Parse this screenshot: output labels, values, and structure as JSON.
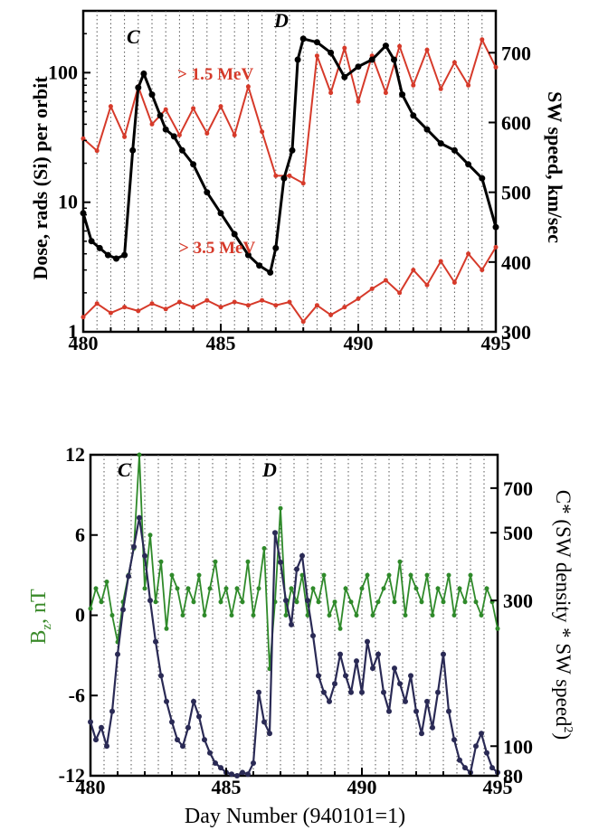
{
  "chart_data": [
    {
      "type": "line",
      "xlim": [
        480,
        495
      ],
      "x_ticks": [
        "480",
        "485",
        "490",
        "495"
      ],
      "left_axis": {
        "label": "Dose, rads (Si) per orbit",
        "scale": "log",
        "ylim": [
          1,
          300
        ],
        "ticks": [
          "1",
          "10",
          "100"
        ]
      },
      "right_axis": {
        "label": "SW speed, km/sec",
        "scale": "linear",
        "ylim": [
          300,
          760
        ],
        "ticks": [
          "300",
          "400",
          "500",
          "600",
          "700"
        ]
      },
      "grid": "vertical dotted",
      "annotations": [
        {
          "text": "C",
          "x": 482.2
        },
        {
          "text": "D",
          "x": 487.2
        },
        {
          "text": "> 1.5  MeV",
          "x": 483.5,
          "y": 140,
          "color": "#d63a2a"
        },
        {
          "text": "> 3.5  MeV",
          "x": 483.4,
          "y": 2.5,
          "color": "#d63a2a"
        }
      ],
      "series": [
        {
          "color": "#d63a2a",
          "axis": "left",
          "x": [
            480,
            480.5,
            481,
            481.5,
            482,
            482.5,
            483,
            483.5,
            484,
            484.5,
            485,
            485.5,
            486,
            486.5,
            487,
            487.5,
            488,
            488.5,
            489,
            489.5,
            490,
            490.5,
            491,
            491.5,
            492,
            492.5,
            493,
            493.5,
            494,
            494.5,
            495
          ],
          "values": [
            31,
            25,
            55,
            32,
            78,
            40,
            52,
            33,
            53,
            34,
            55,
            33,
            78,
            35,
            16,
            16,
            14,
            135,
            70,
            155,
            60,
            135,
            70,
            160,
            80,
            150,
            75,
            120,
            80,
            180,
            110
          ]
        },
        {
          "color": "#d63a2a",
          "axis": "left",
          "x": [
            480,
            480.5,
            481,
            481.5,
            482,
            482.5,
            483,
            483.5,
            484,
            484.5,
            485,
            485.5,
            486,
            486.5,
            487,
            487.5,
            488,
            488.5,
            489,
            489.5,
            490,
            490.5,
            491,
            491.5,
            492,
            492.5,
            493,
            493.5,
            494,
            494.5,
            495
          ],
          "values": [
            1.3,
            1.65,
            1.4,
            1.55,
            1.45,
            1.65,
            1.5,
            1.7,
            1.55,
            1.75,
            1.55,
            1.7,
            1.6,
            1.75,
            1.6,
            1.7,
            1.2,
            1.6,
            1.35,
            1.55,
            1.8,
            2.15,
            2.5,
            2.0,
            3.0,
            2.3,
            3.5,
            2.4,
            4.0,
            3.0,
            4.5
          ]
        },
        {
          "color": "#000000",
          "axis": "right",
          "x": [
            480,
            480.3,
            480.6,
            480.9,
            481.2,
            481.5,
            481.8,
            482.0,
            482.2,
            482.5,
            482.8,
            483.0,
            483.3,
            483.6,
            484.0,
            484.5,
            485.0,
            485.5,
            486.0,
            486.4,
            486.8,
            487.0,
            487.3,
            487.6,
            487.8,
            488.0,
            488.5,
            489.0,
            489.5,
            490.0,
            490.5,
            491.0,
            491.3,
            491.6,
            492.0,
            492.5,
            493.0,
            493.5,
            494.0,
            494.5,
            495.0
          ],
          "values": [
            470,
            430,
            420,
            410,
            405,
            410,
            560,
            650,
            670,
            640,
            610,
            590,
            580,
            560,
            540,
            500,
            470,
            440,
            410,
            395,
            385,
            420,
            520,
            560,
            690,
            720,
            715,
            700,
            665,
            680,
            690,
            710,
            690,
            640,
            610,
            590,
            570,
            560,
            540,
            520,
            450
          ]
        }
      ]
    },
    {
      "type": "line",
      "xlim": [
        480,
        495
      ],
      "x_ticks": [
        "480",
        "485",
        "490",
        "495"
      ],
      "xlabel": "Day Number (940101=1)",
      "left_axis": {
        "label": "B",
        "label_sub": "z",
        "label_rest": ", nT",
        "scale": "linear",
        "ylim": [
          -12,
          12
        ],
        "ticks": [
          "12",
          "6",
          "0",
          "-6",
          "-12"
        ]
      },
      "right_axis": {
        "label": "C* (SW density * SW speed",
        "label_sup": "2",
        "label_end": ")",
        "scale": "log",
        "ylim": [
          80,
          900
        ],
        "ticks": [
          "700",
          "500",
          "300",
          "100",
          "80"
        ]
      },
      "grid": "vertical dotted",
      "annotations": [
        {
          "text": "C",
          "x": 481.1
        },
        {
          "text": "D",
          "x": 486.2
        }
      ],
      "series": [
        {
          "color": "#2f8a2a",
          "axis": "left",
          "x": [
            480.0,
            480.2,
            480.4,
            480.6,
            480.8,
            481.0,
            481.2,
            481.4,
            481.6,
            481.8,
            482.0,
            482.2,
            482.4,
            482.6,
            482.8,
            483.0,
            483.2,
            483.4,
            483.6,
            483.8,
            484.0,
            484.2,
            484.4,
            484.6,
            484.8,
            485.0,
            485.2,
            485.4,
            485.6,
            485.8,
            486.0,
            486.2,
            486.4,
            486.6,
            486.8,
            487.0,
            487.2,
            487.4,
            487.6,
            487.8,
            488.0,
            488.2,
            488.4,
            488.6,
            488.8,
            489.0,
            489.2,
            489.4,
            489.6,
            489.8,
            490.0,
            490.2,
            490.4,
            490.6,
            490.8,
            491.0,
            491.2,
            491.4,
            491.6,
            491.8,
            492.0,
            492.2,
            492.4,
            492.6,
            492.8,
            493.0,
            493.2,
            493.4,
            493.6,
            493.8,
            494.0,
            494.2,
            494.4,
            494.6,
            494.8,
            495.0
          ],
          "values": [
            0.5,
            2,
            1,
            2.5,
            0,
            -2,
            1,
            3,
            5,
            12,
            2,
            6,
            1,
            4,
            -1,
            3,
            2,
            0,
            2,
            1,
            3,
            0,
            2,
            4,
            1,
            2,
            0,
            2,
            1,
            4,
            0,
            2,
            5,
            -4,
            1,
            8,
            0,
            2,
            1,
            3,
            0,
            2,
            1,
            3,
            0,
            1,
            -1,
            2,
            1,
            0,
            2,
            3,
            0,
            1,
            2,
            3,
            1,
            4,
            0,
            3,
            2,
            1,
            3,
            0,
            2,
            1,
            3,
            0,
            2,
            1,
            3,
            1,
            0,
            2,
            1,
            -1
          ]
        },
        {
          "color": "#2a2a55",
          "axis": "right",
          "x": [
            480.0,
            480.2,
            480.4,
            480.6,
            480.8,
            481.0,
            481.2,
            481.4,
            481.6,
            481.8,
            482.0,
            482.2,
            482.4,
            482.6,
            482.8,
            483.0,
            483.2,
            483.4,
            483.6,
            483.8,
            484.0,
            484.2,
            484.4,
            484.6,
            484.8,
            485.0,
            485.2,
            485.4,
            485.6,
            485.8,
            486.0,
            486.2,
            486.4,
            486.6,
            486.8,
            487.0,
            487.2,
            487.4,
            487.6,
            487.8,
            488.0,
            488.2,
            488.4,
            488.6,
            488.8,
            489.0,
            489.2,
            489.4,
            489.6,
            489.8,
            490.0,
            490.2,
            490.4,
            490.6,
            490.8,
            491.0,
            491.2,
            491.4,
            491.6,
            491.8,
            492.0,
            492.2,
            492.4,
            492.6,
            492.8,
            493.0,
            493.2,
            493.4,
            493.6,
            493.8,
            494.0,
            494.2,
            494.4,
            494.6,
            494.8,
            495.0
          ],
          "values": [
            120,
            105,
            115,
            100,
            130,
            200,
            280,
            360,
            450,
            560,
            420,
            300,
            220,
            170,
            140,
            120,
            105,
            100,
            115,
            140,
            125,
            105,
            95,
            88,
            85,
            82,
            81,
            80,
            82,
            81,
            88,
            150,
            120,
            110,
            500,
            400,
            300,
            250,
            380,
            420,
            300,
            230,
            170,
            150,
            140,
            160,
            200,
            170,
            150,
            190,
            150,
            220,
            180,
            200,
            150,
            130,
            180,
            160,
            140,
            170,
            130,
            110,
            140,
            115,
            150,
            200,
            130,
            105,
            90,
            85,
            82,
            100,
            110,
            95,
            85,
            82
          ]
        }
      ]
    }
  ]
}
